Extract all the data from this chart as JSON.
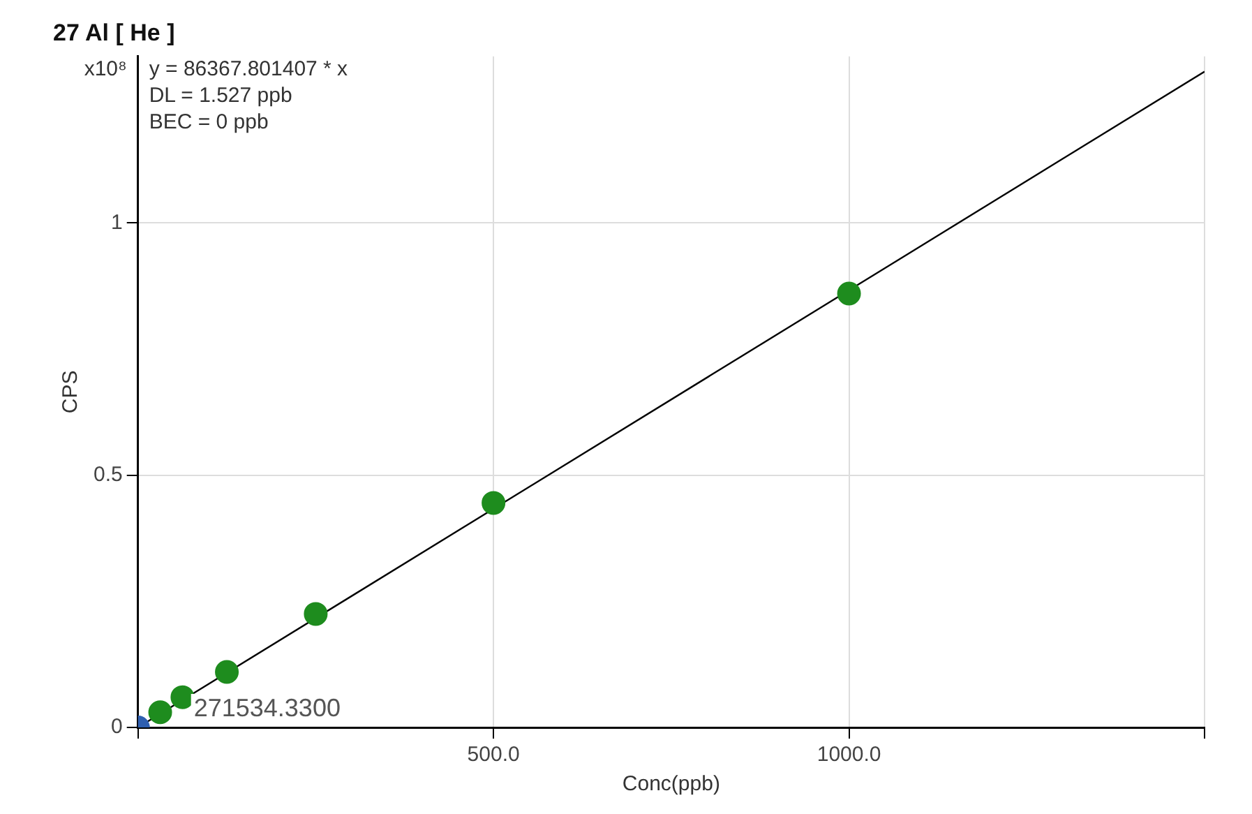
{
  "chart_data": {
    "type": "scatter",
    "title": "27 Al [ He ]",
    "xlabel": "Conc(ppb)",
    "ylabel": "CPS",
    "xlim": [
      0,
      1500
    ],
    "ylim": [
      0,
      1.33
    ],
    "xticks": [
      {
        "value": 0,
        "label": null
      },
      {
        "value": 500,
        "label": "500.0"
      },
      {
        "value": 1000,
        "label": "1000.0"
      },
      {
        "value": 1500,
        "label": null
      }
    ],
    "yticks": [
      0,
      0.5,
      1
    ],
    "grid": true,
    "legend": false,
    "marker": "circle",
    "series": [
      {
        "color": "#1e8c1e",
        "x": [
          31.25,
          62.5,
          125,
          250,
          500,
          1000
        ],
        "values": [
          0.03,
          0.06,
          0.11,
          0.225,
          0.445,
          0.86
        ]
      },
      {
        "type": "line",
        "color": "#000000",
        "marker": "none",
        "x": [
          0,
          1500
        ],
        "values": [
          0,
          1.3
        ]
      },
      {
        "color": "#2f5fb0",
        "x": [
          0
        ],
        "values": [
          0
        ]
      }
    ],
    "annotations": [
      "x10⁸",
      "y = 86367.801407 * x",
      "DL = 1.527 ppb",
      "BEC = 0 ppb",
      {
        "text": "271534.3300",
        "x": 0,
        "y": 0
      }
    ]
  }
}
